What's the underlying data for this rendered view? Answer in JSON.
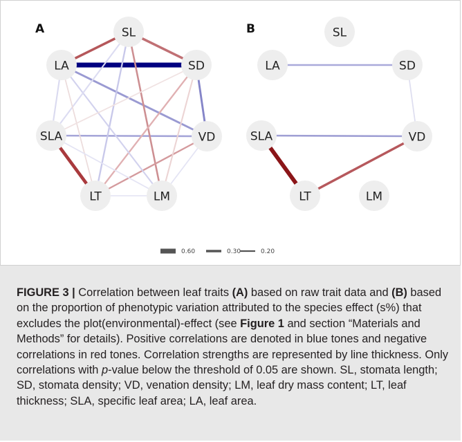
{
  "panels": [
    {
      "id": "A",
      "label": "A"
    },
    {
      "id": "B",
      "label": "B"
    }
  ],
  "nodes": [
    "SL",
    "SD",
    "VD",
    "LM",
    "LT",
    "SLA",
    "LA"
  ],
  "edge_colors": {
    "positive": "#8f8fd0",
    "negative": "#b05050"
  },
  "networks": {
    "A": [
      {
        "from": "LA",
        "to": "SD",
        "weight": 0.6,
        "sign": "positive",
        "color": "#000080"
      },
      {
        "from": "SL",
        "to": "LA",
        "weight": 0.3,
        "sign": "negative",
        "color": "#b5575a"
      },
      {
        "from": "SL",
        "to": "SD",
        "weight": 0.3,
        "sign": "negative",
        "color": "#c07074"
      },
      {
        "from": "SLA",
        "to": "LT",
        "weight": 0.4,
        "sign": "negative",
        "color": "#a93a3d"
      },
      {
        "from": "SD",
        "to": "VD",
        "weight": 0.25,
        "sign": "positive",
        "color": "#8585c8"
      },
      {
        "from": "LA",
        "to": "VD",
        "weight": 0.25,
        "sign": "positive",
        "color": "#9a9ad2"
      },
      {
        "from": "SLA",
        "to": "VD",
        "weight": 0.22,
        "sign": "positive",
        "color": "#a5a5d8"
      },
      {
        "from": "SL",
        "to": "LM",
        "weight": 0.22,
        "sign": "negative",
        "color": "#cd8f92"
      },
      {
        "from": "SD",
        "to": "LT",
        "weight": 0.2,
        "sign": "negative",
        "color": "#e0b0b2"
      },
      {
        "from": "VD",
        "to": "LT",
        "weight": 0.2,
        "sign": "negative",
        "color": "#d49a9d"
      },
      {
        "from": "SL",
        "to": "LT",
        "weight": 0.2,
        "sign": "positive",
        "color": "#c8c8ea"
      },
      {
        "from": "LA",
        "to": "LM",
        "weight": 0.18,
        "sign": "positive",
        "color": "#d2d2ee"
      },
      {
        "from": "SL",
        "to": "SLA",
        "weight": 0.18,
        "sign": "positive",
        "color": "#dcdcf2"
      },
      {
        "from": "LA",
        "to": "SLA",
        "weight": 0.18,
        "sign": "positive",
        "color": "#dadaf0"
      },
      {
        "from": "LA",
        "to": "LT",
        "weight": 0.15,
        "sign": "negative",
        "color": "#ecdcdc"
      },
      {
        "from": "SD",
        "to": "LM",
        "weight": 0.18,
        "sign": "negative",
        "color": "#ecd4d4"
      },
      {
        "from": "SLA",
        "to": "LM",
        "weight": 0.15,
        "sign": "positive",
        "color": "#e4e4f4"
      },
      {
        "from": "LT",
        "to": "LM",
        "weight": 0.15,
        "sign": "positive",
        "color": "#e6e6f4"
      },
      {
        "from": "VD",
        "to": "LM",
        "weight": 0.15,
        "sign": "positive",
        "color": "#e4e4f4"
      },
      {
        "from": "SD",
        "to": "SLA",
        "weight": 0.15,
        "sign": "negative",
        "color": "#f0e2e2"
      }
    ],
    "B": [
      {
        "from": "LA",
        "to": "SD",
        "weight": 0.22,
        "sign": "positive",
        "color": "#a9a9da"
      },
      {
        "from": "SLA",
        "to": "VD",
        "weight": 0.22,
        "sign": "positive",
        "color": "#9f9fd4"
      },
      {
        "from": "SLA",
        "to": "LT",
        "weight": 0.5,
        "sign": "negative",
        "color": "#8b1518"
      },
      {
        "from": "VD",
        "to": "LT",
        "weight": 0.3,
        "sign": "negative",
        "color": "#b6585c"
      },
      {
        "from": "SD",
        "to": "VD",
        "weight": 0.15,
        "sign": "positive",
        "color": "#dedef0"
      }
    ]
  },
  "legend": [
    {
      "label": "0.60",
      "weight": 0.6
    },
    {
      "label": "0.30",
      "weight": 0.3
    },
    {
      "label": "0.20",
      "weight": 0.2
    }
  ],
  "caption": {
    "figure_label": "FIGURE 3 |",
    "t1": " Correlation between leaf traits ",
    "a": "(A)",
    "t2": " based on raw trait data and ",
    "b": "(B)",
    "t3": " based on the proportion of phenotypic variation attributed to the species effect (s%) that excludes the plot(environmental)-effect (see ",
    "ref": "Figure 1",
    "t4": " and section “Materials and Methods” for details). Positive correlations are denoted in blue tones and negative correlations in red tones. Correlation strengths are represented by line thickness. Only correlations with ",
    "p": "p",
    "t5": "-value below the threshold of 0.05 are shown. SL, stomata length; SD, stomata density; VD, venation density; LM, leaf dry mass content; LT, leaf thickness; SLA, specific leaf area; LA, leaf area."
  }
}
